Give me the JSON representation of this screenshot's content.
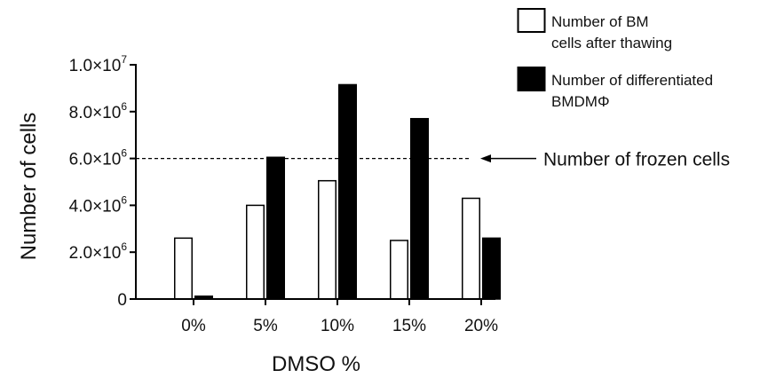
{
  "chart_data": {
    "type": "bar",
    "categories": [
      "0%",
      "5%",
      "10%",
      "15%",
      "20%"
    ],
    "series": [
      {
        "name": "Number of BM cells after thawing",
        "fill": "#ffffff",
        "stroke": "#000000",
        "values": [
          2600000,
          4000000,
          5050000,
          2500000,
          4300000
        ]
      },
      {
        "name": "Number of differentiated BMDMΦ",
        "fill": "#000000",
        "stroke": "#000000",
        "values": [
          120000,
          6050000,
          9150000,
          7700000,
          2600000
        ]
      }
    ],
    "legend": {
      "position": "top-right",
      "entries": [
        {
          "lines": [
            "Number of BM",
            "cells after thawing"
          ]
        },
        {
          "lines": [
            "Number of differentiated",
            "BMDMΦ"
          ]
        }
      ]
    },
    "xlabel": "DMSO %",
    "ylabel": "Number of  cells",
    "ylim": [
      0,
      10000000
    ],
    "yticks": [
      {
        "value": 0,
        "mantissa": "0",
        "exponent": ""
      },
      {
        "value": 2000000,
        "mantissa": "2.0×10",
        "exponent": "6"
      },
      {
        "value": 4000000,
        "mantissa": "4.0×10",
        "exponent": "6"
      },
      {
        "value": 6000000,
        "mantissa": "6.0×10",
        "exponent": "6"
      },
      {
        "value": 8000000,
        "mantissa": "8.0×10",
        "exponent": "6"
      },
      {
        "value": 10000000,
        "mantissa": "1.0×10",
        "exponent": "7"
      }
    ],
    "reference_line": {
      "value": 6000000,
      "style": "dashed",
      "label": "Number of frozen cells"
    },
    "grid": false
  }
}
